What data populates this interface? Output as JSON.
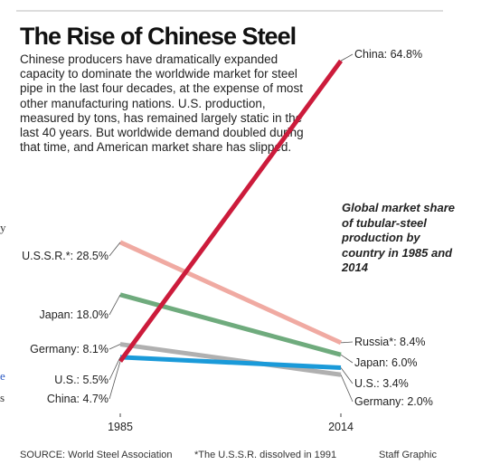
{
  "title": "The Rise of Chinese Steel",
  "intro": "Chinese producers have dramatically expanded capacity to dominate the worldwide market for steel pipe in the last four decades, at the expense of most other manufacturing nations. U.S. production, measured by tons, has remained largely static in the last 40 years. But worldwide demand doubled during that time, and American market share has slipped.",
  "note": "Global market share of tubular-steel production by country in 1985 and 2014",
  "source": "SOURCE: World Steel Association",
  "footnote": "*The U.S.S.R. dissolved in 1991",
  "credit": "Staff Graphic",
  "page_edge_fragments": [
    "y",
    "e",
    "s"
  ],
  "chart_data": {
    "type": "line",
    "title": "The Rise of Chinese Steel",
    "x": [
      "1985",
      "2014"
    ],
    "ylabel": "",
    "xlabel": "",
    "unit": "%",
    "grid": false,
    "legend": "none (direct labels)",
    "series": [
      {
        "name": "U.S.S.R.*",
        "values": [
          28.5,
          null
        ],
        "color": "#f0aaa2"
      },
      {
        "name": "Russia*",
        "values": [
          null,
          8.4
        ],
        "color": "#f0aaa2"
      },
      {
        "name": "Japan",
        "values": [
          18.0,
          6.0
        ],
        "color": "#6fab7d"
      },
      {
        "name": "Germany",
        "values": [
          8.1,
          2.0
        ],
        "color": "#b0b0b0"
      },
      {
        "name": "U.S.",
        "values": [
          5.5,
          3.4
        ],
        "color": "#1a9ad9"
      },
      {
        "name": "China",
        "values": [
          4.7,
          64.8
        ],
        "color": "#cc1b3b"
      }
    ],
    "labels_1985": [
      {
        "name": "U.S.S.R.*",
        "text": "U.S.S.R.*:",
        "value": "28.5%"
      },
      {
        "name": "Japan",
        "text": "Japan:",
        "value": "18.0%"
      },
      {
        "name": "Germany",
        "text": "Germany:",
        "value": "8.1%"
      },
      {
        "name": "U.S.",
        "text": "U.S.:",
        "value": "5.5%"
      },
      {
        "name": "China",
        "text": "China:",
        "value": "4.7%"
      }
    ],
    "labels_2014": [
      {
        "name": "China",
        "text": "China:",
        "value": "64.8%"
      },
      {
        "name": "Russia*",
        "text": "Russia*:",
        "value": "8.4%"
      },
      {
        "name": "Japan",
        "text": "Japan:",
        "value": "6.0%"
      },
      {
        "name": "U.S.",
        "text": "U.S.:",
        "value": "3.4%"
      },
      {
        "name": "Germany",
        "text": "Germany:",
        "value": "2.0%"
      }
    ]
  }
}
